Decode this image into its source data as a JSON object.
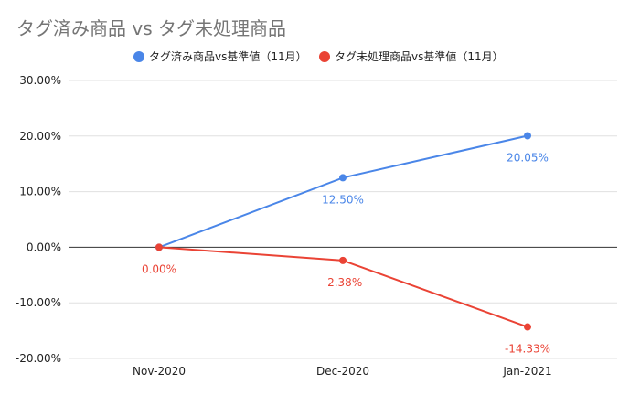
{
  "chart_data": {
    "type": "line",
    "title": "タグ済み商品 vs タグ未処理商品",
    "categories": [
      "Nov-2020",
      "Dec-2020",
      "Jan-2021"
    ],
    "series": [
      {
        "name": "タグ済み商品vs基準値（11月）",
        "color": "#4a86e8",
        "values": [
          0.0,
          12.5,
          20.05
        ],
        "labels": [
          "",
          "12.50%",
          "20.05%"
        ]
      },
      {
        "name": "タグ未処理商品vs基準値（11月）",
        "color": "#ea4335",
        "values": [
          0.0,
          -2.38,
          -14.33
        ],
        "labels": [
          "0.00%",
          "-2.38%",
          "-14.33%"
        ]
      }
    ],
    "yticks": [
      "30.00%",
      "20.00%",
      "10.00%",
      "0.00%",
      "-10.00%",
      "-20.00%"
    ],
    "ylim": [
      -20,
      30
    ],
    "grid": true,
    "legend_position": "top"
  }
}
